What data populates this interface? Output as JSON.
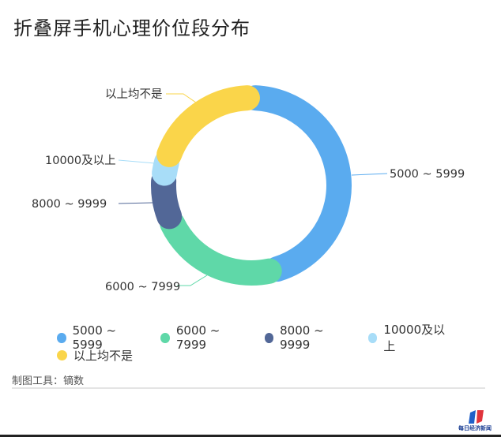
{
  "title": "折叠屏手机心理价位段分布",
  "chart_data": {
    "type": "pie",
    "subtype": "donut",
    "title": "折叠屏手机心理价位段分布",
    "categories": [
      "5000 ~ 5999",
      "6000 ~ 7999",
      "8000 ~ 9999",
      "10000及以上",
      "以上均不是"
    ],
    "values": [
      46,
      22.5,
      8,
      3.5,
      20
    ],
    "unit": "%",
    "colors": [
      "#5AABEF",
      "#5FD8A8",
      "#526797",
      "#A8DDF8",
      "#FAD54A"
    ],
    "legend_position": "bottom",
    "start_angle": 0,
    "direction": "clockwise"
  },
  "labels": {
    "s0": "5000 ~ 5999",
    "s1": "6000 ~ 7999",
    "s2": "8000 ~ 9999",
    "s3": "10000及以上",
    "s4": "以上均不是"
  },
  "legend": {
    "items": [
      {
        "label": "5000 ~ 5999",
        "color": "#5AABEF"
      },
      {
        "label": "6000 ~ 7999",
        "color": "#5FD8A8"
      },
      {
        "label": "8000 ~ 9999",
        "color": "#526797"
      },
      {
        "label": "10000及以上",
        "color": "#A8DDF8"
      },
      {
        "label": "以上均不是",
        "color": "#FAD54A"
      }
    ]
  },
  "footer": {
    "source": "制图工具：镝数",
    "logo_text": "每日经济新闻"
  }
}
